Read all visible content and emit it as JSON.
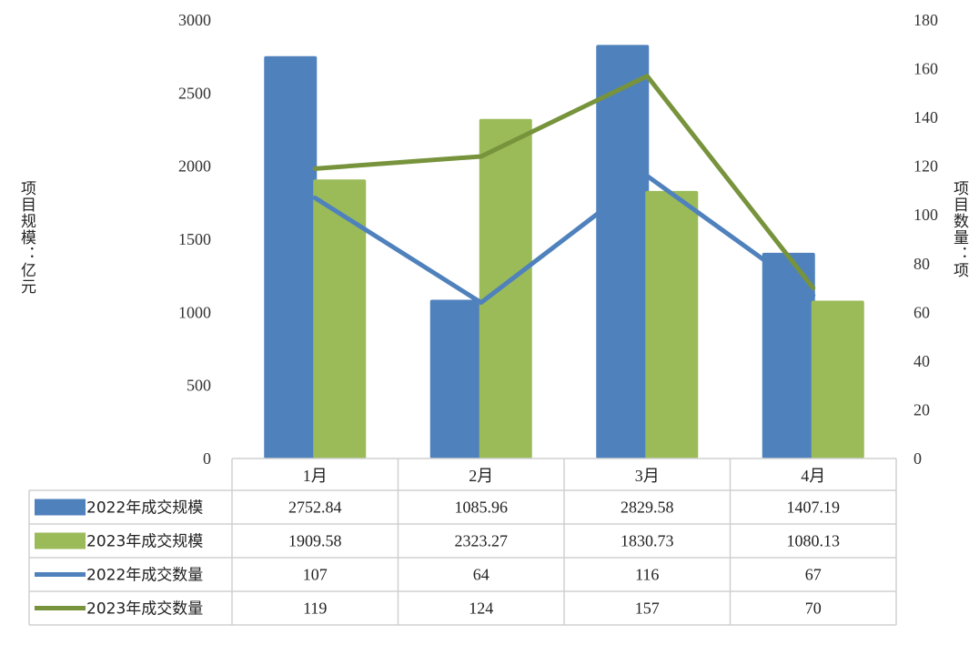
{
  "chart_data": {
    "type": "bar",
    "categories": [
      "1月",
      "2月",
      "3月",
      "4月"
    ],
    "series": [
      {
        "name": "2022年成交规模",
        "kind": "bar",
        "axis": "left",
        "color": "#4F81BD",
        "values": [
          2752.84,
          1085.96,
          2829.58,
          1407.19
        ],
        "labels": [
          "2752.84",
          "1085.96",
          "2829.58",
          "1407.19"
        ]
      },
      {
        "name": "2023年成交规模",
        "kind": "bar",
        "axis": "left",
        "color": "#9BBB59",
        "values": [
          1909.58,
          2323.27,
          1830.73,
          1080.13
        ],
        "labels": [
          "1909.58",
          "2323.27",
          "1830.73",
          "1080.13"
        ]
      },
      {
        "name": "2022年成交数量",
        "kind": "line",
        "axis": "right",
        "color": "#4F81BD",
        "values": [
          107,
          64,
          116,
          67
        ],
        "labels": [
          "107",
          "64",
          "116",
          "67"
        ]
      },
      {
        "name": "2023年成交数量",
        "kind": "line",
        "axis": "right",
        "color": "#77933C",
        "values": [
          119,
          124,
          157,
          70
        ],
        "labels": [
          "119",
          "124",
          "157",
          "70"
        ]
      }
    ],
    "ylabel": "项目规模：亿元",
    "y2label": "项目数量：项",
    "ylim": [
      0,
      3000
    ],
    "y2lim": [
      0,
      180
    ],
    "yticks": [
      0,
      500,
      1000,
      1500,
      2000,
      2500,
      3000
    ],
    "y2ticks": [
      0,
      20,
      40,
      60,
      80,
      100,
      120,
      140,
      160,
      180
    ],
    "grid": false,
    "legend": "data-table"
  }
}
